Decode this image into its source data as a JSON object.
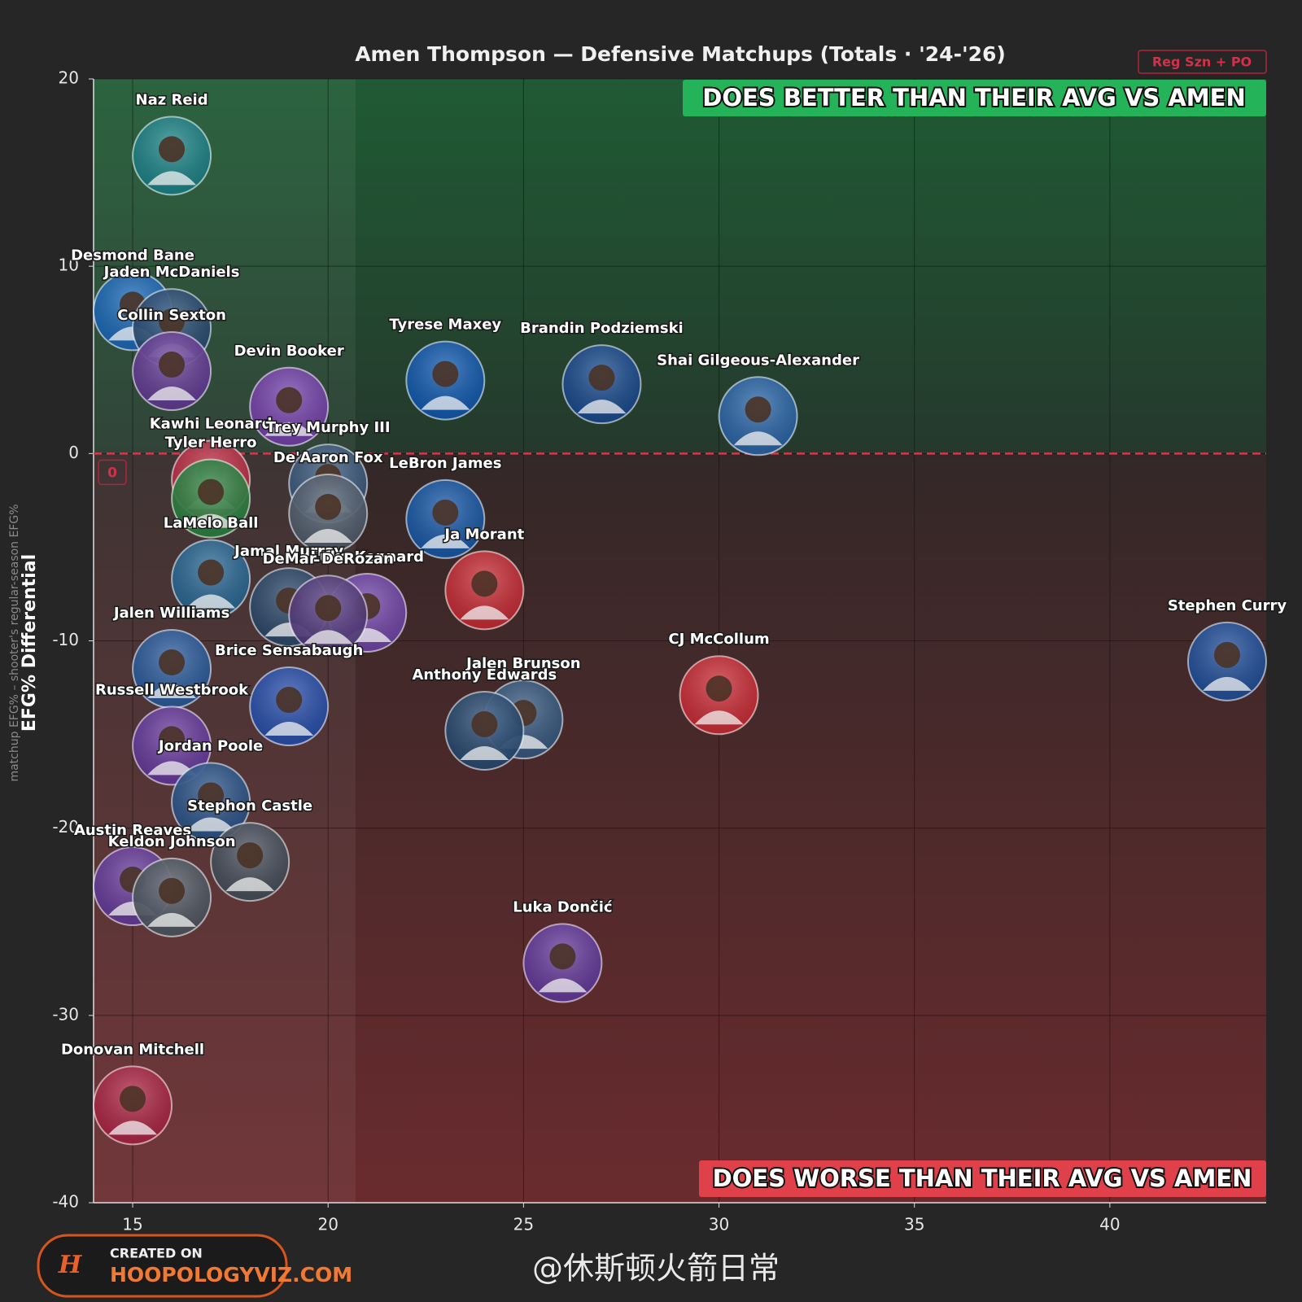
{
  "chart_data": {
    "type": "scatter",
    "title": "Amen Thompson — Defensive Matchups (Totals · '24-'26)",
    "badge": "Reg Szn + PO",
    "y_label": "EFG% Differential",
    "y_sublabel": "matchup EFG% – shooter's regular-season EFG%",
    "annotations": {
      "top": "DOES BETTER THAN THEIR AVG VS AMEN",
      "bottom": "DOES WORSE THAN THEIR AVG VS AMEN"
    },
    "reference_line": 0,
    "shaded_xrange": [
      14,
      20.7
    ],
    "xlim": [
      14,
      44
    ],
    "ylim": [
      -40,
      20
    ],
    "xticks": [
      15,
      20,
      25,
      30,
      35,
      40
    ],
    "yticks": [
      -40,
      -30,
      -20,
      -10,
      0,
      10,
      20
    ],
    "grid": true,
    "points": [
      {
        "name": "Naz Reid",
        "x": 16.0,
        "y": 15.9,
        "color": "#1f8a8f"
      },
      {
        "name": "Desmond Bane",
        "x": 15.0,
        "y": 7.6,
        "color": "#1d6fc4"
      },
      {
        "name": "Jaden McDaniels",
        "x": 16.0,
        "y": 6.7,
        "color": "#2a4f7a"
      },
      {
        "name": "Collin Sexton",
        "x": 16.0,
        "y": 4.4,
        "color": "#6b3fa0"
      },
      {
        "name": "Devin Booker",
        "x": 19.0,
        "y": 2.5,
        "color": "#7e45b8"
      },
      {
        "name": "Tyrese Maxey",
        "x": 23.0,
        "y": 3.9,
        "color": "#1560bd"
      },
      {
        "name": "Brandin Podziemski",
        "x": 27.0,
        "y": 3.7,
        "color": "#1d4f99"
      },
      {
        "name": "Shai Gilgeous-Alexander",
        "x": 31.0,
        "y": 2.0,
        "color": "#2f6db5"
      },
      {
        "name": "Kawhi Leonard",
        "x": 17.0,
        "y": -1.4,
        "color": "#c8324a"
      },
      {
        "name": "Tyler Herro",
        "x": 17.0,
        "y": -2.4,
        "color": "#2f8a45"
      },
      {
        "name": "Trey Murphy III",
        "x": 20.0,
        "y": -1.6,
        "color": "#3e5f86"
      },
      {
        "name": "De'Aaron Fox",
        "x": 20.0,
        "y": -3.2,
        "color": "#566475"
      },
      {
        "name": "LeBron James",
        "x": 23.0,
        "y": -3.5,
        "color": "#1a5fb4"
      },
      {
        "name": "Ja Morant",
        "x": 24.0,
        "y": -7.3,
        "color": "#d6303a"
      },
      {
        "name": "LaMelo Ball",
        "x": 17.0,
        "y": -6.7,
        "color": "#2b6f9e"
      },
      {
        "name": "Jamal Murray",
        "x": 19.0,
        "y": -8.2,
        "color": "#2f4e72"
      },
      {
        "name": "Luke Kennard",
        "x": 21.0,
        "y": -8.5,
        "color": "#7a4bb5"
      },
      {
        "name": "DeMar DeRozan",
        "x": 20.0,
        "y": -8.6,
        "color": "#5a3f86"
      },
      {
        "name": "Jalen Williams",
        "x": 16.0,
        "y": -11.5,
        "color": "#2d62a8"
      },
      {
        "name": "Brice Sensabaugh",
        "x": 19.0,
        "y": -13.5,
        "color": "#2a55b8"
      },
      {
        "name": "Russell Westbrook",
        "x": 16.0,
        "y": -15.6,
        "color": "#6e3ea8"
      },
      {
        "name": "Jalen Brunson",
        "x": 25.0,
        "y": -14.2,
        "color": "#3b5f8a"
      },
      {
        "name": "Anthony Edwards",
        "x": 24.0,
        "y": -14.8,
        "color": "#2a4f7a"
      },
      {
        "name": "CJ McCollum",
        "x": 30.0,
        "y": -12.9,
        "color": "#d9313c"
      },
      {
        "name": "Stephen Curry",
        "x": 43.0,
        "y": -11.1,
        "color": "#2356a6"
      },
      {
        "name": "Jordan Poole",
        "x": 17.0,
        "y": -18.6,
        "color": "#2c5a94"
      },
      {
        "name": "Stephon Castle",
        "x": 18.0,
        "y": -21.8,
        "color": "#4a5562"
      },
      {
        "name": "Austin Reaves",
        "x": 15.0,
        "y": -23.1,
        "color": "#6c3fa6"
      },
      {
        "name": "Keldon Johnson",
        "x": 16.0,
        "y": -23.7,
        "color": "#545d68"
      },
      {
        "name": "Luka Dončić",
        "x": 26.0,
        "y": -27.2,
        "color": "#6a3fa8"
      },
      {
        "name": "Donovan Mitchell",
        "x": 15.0,
        "y": -34.8,
        "color": "#b5284a"
      }
    ],
    "logo": {
      "line1": "CREATED ON",
      "line2": "HOOPOLOGYVIZ.COM"
    },
    "watermark": "@休斯顿火箭日常"
  }
}
